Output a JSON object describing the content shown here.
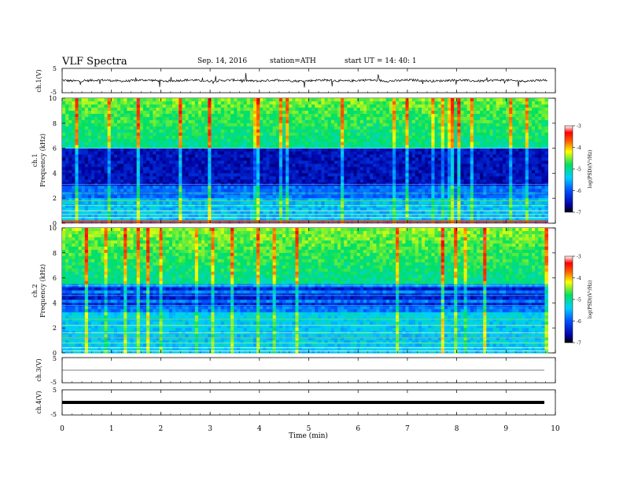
{
  "header": {
    "title": "VLF  Spectra",
    "date": "Sep. 14, 2016",
    "station": "station=ATH",
    "start": "start  UT  =    14: 40: 1"
  },
  "chart_data": [
    {
      "type": "line",
      "name": "ch1-waveform",
      "ylabel": "ch.1(V)",
      "ylim": [
        -5,
        5
      ],
      "yticks": [
        "5",
        "-5"
      ],
      "xlim": [
        0,
        10
      ]
    },
    {
      "type": "heatmap",
      "name": "ch1-spectrogram",
      "ylabel_top": "ch.1",
      "ylabel": "Frequency  (kHz)",
      "ylim": [
        0,
        10
      ],
      "yticks": [
        "0",
        "2",
        "4",
        "6",
        "8",
        "10"
      ],
      "xlim": [
        0,
        9.85
      ],
      "colorbar": {
        "label": "log(PSD)(V²/Hz)",
        "range": [
          -7,
          -3
        ],
        "ticks": [
          "-3",
          "-4",
          "-5",
          "-6",
          "-7"
        ]
      }
    },
    {
      "type": "heatmap",
      "name": "ch2-spectrogram",
      "ylabel_top": "ch.2",
      "ylabel": "Frequency  (kHz)",
      "ylim": [
        0,
        10
      ],
      "yticks": [
        "0",
        "2",
        "4",
        "6",
        "8",
        "10"
      ],
      "xlim": [
        0,
        9.85
      ],
      "colorbar": {
        "label": "log(PSD)(V²/Hz)",
        "range": [
          -7,
          -3
        ],
        "ticks": [
          "-3",
          "-4",
          "-5",
          "-6",
          "-7"
        ]
      }
    },
    {
      "type": "line",
      "name": "ch3-waveform",
      "ylabel": "ch.3(V)",
      "ylim": [
        -5,
        5
      ],
      "yticks": [
        "5",
        "-5"
      ]
    },
    {
      "type": "line",
      "name": "ch4-waveform",
      "ylabel": "ch.4(V)",
      "ylim": [
        -5,
        5
      ],
      "yticks": [
        "5",
        "-5"
      ]
    }
  ],
  "xaxis": {
    "label": "Time  (min)",
    "ticks": [
      "0",
      "1",
      "2",
      "3",
      "4",
      "5",
      "6",
      "7",
      "8",
      "9",
      "10"
    ],
    "range": [
      0,
      10
    ]
  },
  "colors": {
    "spectrogram_background": "#1a8cff",
    "colormap_low": "#000080",
    "colormap_high": "#ffffff"
  }
}
